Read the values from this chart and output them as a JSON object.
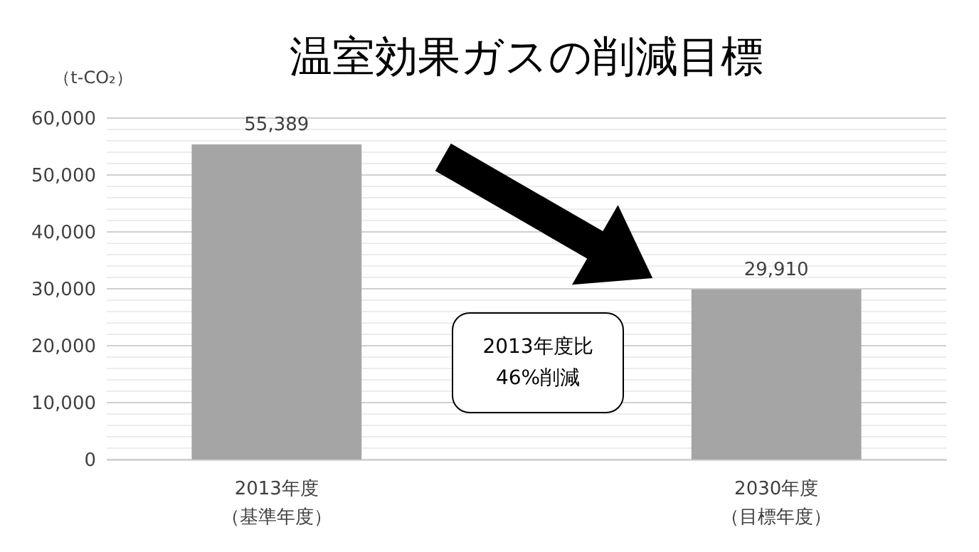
{
  "chart_data": {
    "type": "bar",
    "title": "温室効果ガスの削減目標",
    "ylabel": "（t-CO₂）",
    "categories": [
      "2013年度（基準年度）",
      "2030年度（目標年度）"
    ],
    "values": [
      55389,
      29910
    ],
    "color": "#a5a5a5",
    "value_labels": [
      "55,389",
      "29,910"
    ],
    "ylim": [
      0,
      60000
    ],
    "yticks": [
      {
        "value": 0,
        "label": "0"
      },
      {
        "value": 2000,
        "label": null
      },
      {
        "value": 4000,
        "label": null
      },
      {
        "value": 6000,
        "label": null
      },
      {
        "value": 8000,
        "label": null
      },
      {
        "value": 10000,
        "label": "10,000"
      },
      {
        "value": 12000,
        "label": null
      },
      {
        "value": 14000,
        "label": null
      },
      {
        "value": 16000,
        "label": null
      },
      {
        "value": 18000,
        "label": null
      },
      {
        "value": 20000,
        "label": "20,000"
      },
      {
        "value": 22000,
        "label": null
      },
      {
        "value": 24000,
        "label": null
      },
      {
        "value": 26000,
        "label": null
      },
      {
        "value": 28000,
        "label": null
      },
      {
        "value": 30000,
        "label": "30,000"
      },
      {
        "value": 32000,
        "label": null
      },
      {
        "value": 34000,
        "label": null
      },
      {
        "value": 36000,
        "label": null
      },
      {
        "value": 38000,
        "label": null
      },
      {
        "value": 40000,
        "label": "40,000"
      },
      {
        "value": 42000,
        "label": null
      },
      {
        "value": 44000,
        "label": null
      },
      {
        "value": 46000,
        "label": null
      },
      {
        "value": 48000,
        "label": null
      },
      {
        "value": 50000,
        "label": "50,000"
      },
      {
        "value": 52000,
        "label": null
      },
      {
        "value": 54000,
        "label": null
      },
      {
        "value": 56000,
        "label": null
      },
      {
        "value": 58000,
        "label": null
      },
      {
        "value": 60000,
        "label": "60,000"
      }
    ],
    "grid": "y",
    "annotations": [
      "2013年度比\n46%削減"
    ]
  }
}
